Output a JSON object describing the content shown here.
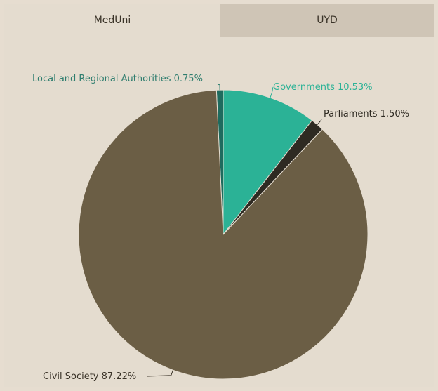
{
  "tabs": [
    {
      "label": "MedUni",
      "active": true
    },
    {
      "label": "UYD",
      "active": false
    }
  ],
  "chart_data": {
    "type": "pie",
    "title": "",
    "slices": [
      {
        "name": "Local and Regional Authorities",
        "value": 0.75,
        "label": "Local and Regional Authorities 0.75%",
        "color": "#1e6b5e",
        "label_color": "#2e7d6e"
      },
      {
        "name": "Governments",
        "value": 10.53,
        "label": "Governments 10.53%",
        "color": "#2bb296",
        "label_color": "#2bb296"
      },
      {
        "name": "Parliaments",
        "value": 1.5,
        "label": "Parliaments 1.50%",
        "color": "#2e2a22",
        "label_color": "#2e2a22"
      },
      {
        "name": "Civil Society",
        "value": 87.22,
        "label": "Civil Society 87.22%",
        "color": "#6b5e45",
        "label_color": "#3a3328"
      }
    ]
  }
}
